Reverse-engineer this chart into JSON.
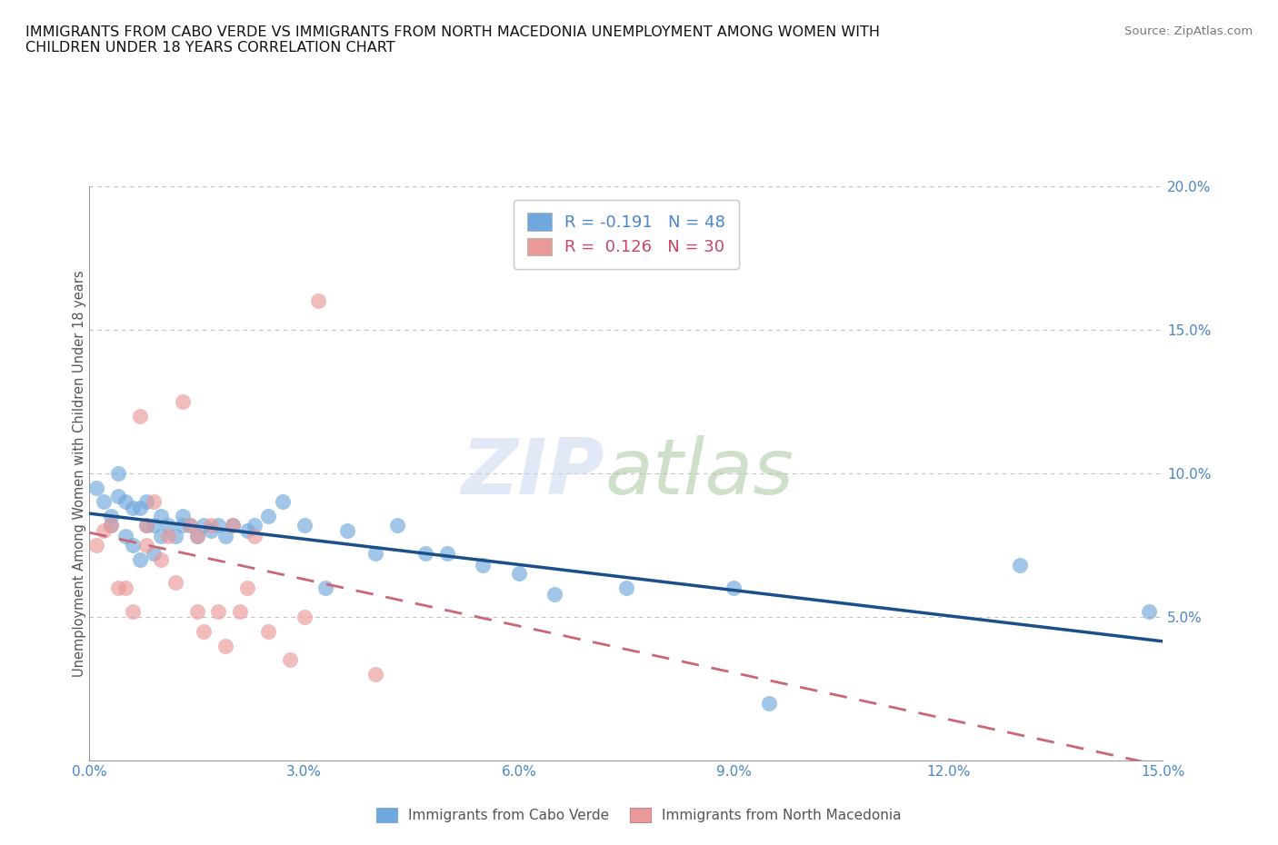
{
  "title_line1": "IMMIGRANTS FROM CABO VERDE VS IMMIGRANTS FROM NORTH MACEDONIA UNEMPLOYMENT AMONG WOMEN WITH",
  "title_line2": "CHILDREN UNDER 18 YEARS CORRELATION CHART",
  "source_text": "Source: ZipAtlas.com",
  "ylabel": "Unemployment Among Women with Children Under 18 years",
  "xlim": [
    0.0,
    0.15
  ],
  "ylim": [
    0.0,
    0.2
  ],
  "xticks": [
    0.0,
    0.03,
    0.06,
    0.09,
    0.12,
    0.15
  ],
  "yticks": [
    0.05,
    0.1,
    0.15,
    0.2
  ],
  "xticklabels": [
    "0.0%",
    "3.0%",
    "6.0%",
    "9.0%",
    "12.0%",
    "15.0%"
  ],
  "yticklabels": [
    "5.0%",
    "10.0%",
    "15.0%",
    "20.0%"
  ],
  "cabo_verde_R": -0.191,
  "cabo_verde_N": 48,
  "north_mac_R": 0.126,
  "north_mac_N": 30,
  "cabo_verde_color": "#6fa8dc",
  "north_mac_color": "#ea9999",
  "cabo_verde_line_color": "#1a4f8a",
  "north_mac_line_color": "#cc6677",
  "cabo_verde_x": [
    0.001,
    0.002,
    0.003,
    0.003,
    0.004,
    0.004,
    0.005,
    0.005,
    0.006,
    0.006,
    0.007,
    0.007,
    0.008,
    0.008,
    0.009,
    0.009,
    0.01,
    0.01,
    0.011,
    0.012,
    0.013,
    0.013,
    0.014,
    0.015,
    0.016,
    0.017,
    0.018,
    0.019,
    0.02,
    0.022,
    0.023,
    0.025,
    0.027,
    0.03,
    0.033,
    0.036,
    0.04,
    0.043,
    0.047,
    0.05,
    0.055,
    0.06,
    0.065,
    0.075,
    0.09,
    0.095,
    0.13,
    0.148
  ],
  "cabo_verde_y": [
    0.095,
    0.09,
    0.085,
    0.082,
    0.1,
    0.092,
    0.09,
    0.078,
    0.088,
    0.075,
    0.088,
    0.07,
    0.09,
    0.082,
    0.082,
    0.072,
    0.085,
    0.078,
    0.082,
    0.078,
    0.082,
    0.085,
    0.082,
    0.078,
    0.082,
    0.08,
    0.082,
    0.078,
    0.082,
    0.08,
    0.082,
    0.085,
    0.09,
    0.082,
    0.06,
    0.08,
    0.072,
    0.082,
    0.072,
    0.072,
    0.068,
    0.065,
    0.058,
    0.06,
    0.06,
    0.02,
    0.068,
    0.052
  ],
  "north_mac_x": [
    0.001,
    0.002,
    0.003,
    0.004,
    0.005,
    0.006,
    0.007,
    0.008,
    0.008,
    0.009,
    0.01,
    0.011,
    0.012,
    0.013,
    0.014,
    0.015,
    0.015,
    0.016,
    0.017,
    0.018,
    0.019,
    0.02,
    0.021,
    0.022,
    0.023,
    0.025,
    0.028,
    0.03,
    0.032,
    0.04
  ],
  "north_mac_y": [
    0.075,
    0.08,
    0.082,
    0.06,
    0.06,
    0.052,
    0.12,
    0.082,
    0.075,
    0.09,
    0.07,
    0.078,
    0.062,
    0.125,
    0.082,
    0.052,
    0.078,
    0.045,
    0.082,
    0.052,
    0.04,
    0.082,
    0.052,
    0.06,
    0.078,
    0.045,
    0.035,
    0.05,
    0.16,
    0.03
  ]
}
